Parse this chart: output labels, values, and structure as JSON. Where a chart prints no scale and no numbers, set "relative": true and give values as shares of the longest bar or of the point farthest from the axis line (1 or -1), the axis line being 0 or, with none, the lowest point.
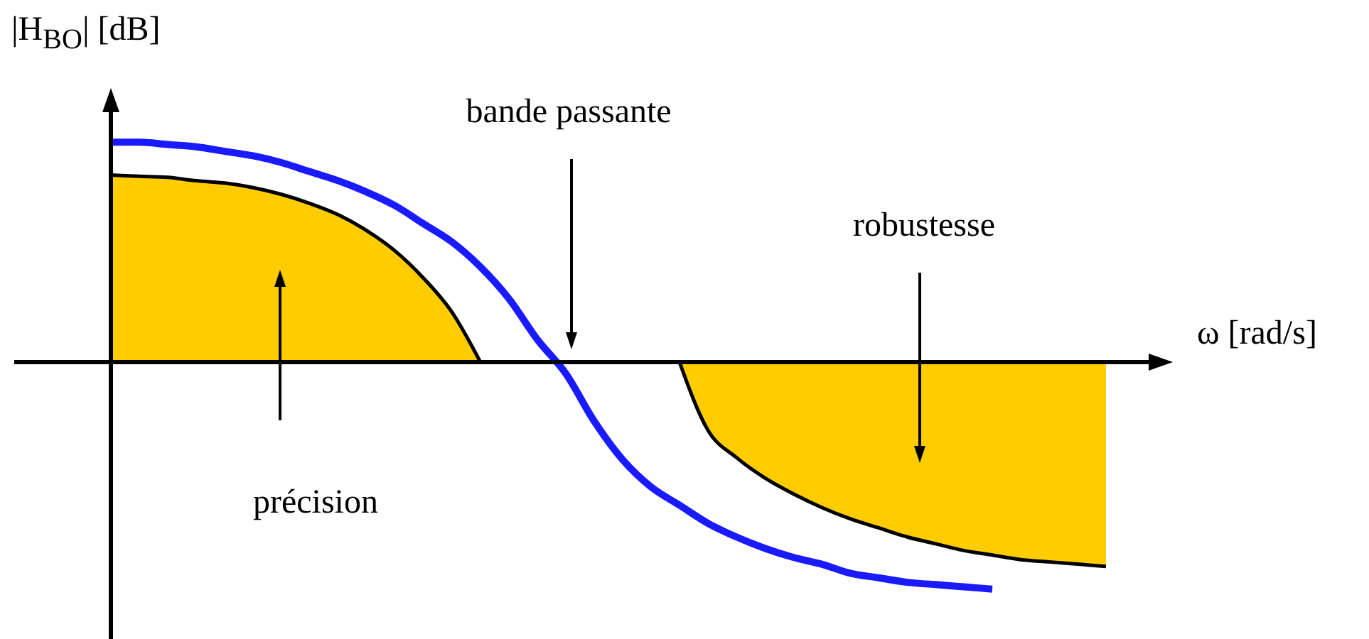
{
  "chart_data": {
    "type": "line",
    "relative": true,
    "xlabel": "ω [rad/s]",
    "ylabel": "|H$_{BO}$| [dB]",
    "categories": [
      null,
      null,
      null,
      null,
      null,
      null,
      null,
      null,
      null,
      null,
      null,
      null,
      null,
      null,
      null,
      null,
      null,
      null,
      null,
      null,
      null,
      null,
      null,
      null,
      null,
      null,
      null,
      null,
      null,
      null,
      null,
      null,
      null,
      null,
      null,
      null,
      null,
      null
    ],
    "series": [
      {
        "type": "area",
        "color": "#ffcc00",
        "values": [
          0.825,
          0.82,
          0.815,
          0.8,
          0.79,
          0.77,
          0.74,
          0.7,
          0.65,
          0.58,
          0.49,
          0.37,
          0.22,
          0,
          null,
          null,
          null,
          null,
          null,
          null,
          null,
          null,
          null,
          null,
          null,
          null,
          null,
          null,
          null,
          null,
          null,
          null,
          null,
          null,
          null,
          null,
          null,
          null
        ]
      },
      {
        "type": "area",
        "color": "#ffcc00",
        "values": [
          null,
          null,
          null,
          null,
          null,
          null,
          null,
          null,
          null,
          null,
          null,
          null,
          null,
          null,
          null,
          null,
          null,
          null,
          null,
          null,
          0,
          -0.3,
          -0.42,
          -0.51,
          -0.58,
          -0.64,
          -0.69,
          -0.73,
          -0.77,
          -0.8,
          -0.83,
          -0.85,
          -0.87,
          -0.88,
          -0.89,
          -0.9,
          null,
          null
        ]
      },
      {
        "color": "#1a1aff",
        "values": [
          0.97,
          0.97,
          0.96,
          0.95,
          0.93,
          0.91,
          0.88,
          0.84,
          0.8,
          0.75,
          0.69,
          0.61,
          0.53,
          0.42,
          0.28,
          0.1,
          -0.05,
          -0.26,
          -0.43,
          -0.55,
          -0.63,
          -0.71,
          -0.77,
          -0.82,
          -0.86,
          -0.89,
          -0.93,
          -0.95,
          -0.97,
          -0.98,
          -0.99,
          -1,
          null,
          null,
          null,
          null,
          null,
          null
        ]
      }
    ],
    "annotations": [
      "bande passante",
      "robustesse",
      "précision"
    ],
    "marker": "none"
  }
}
